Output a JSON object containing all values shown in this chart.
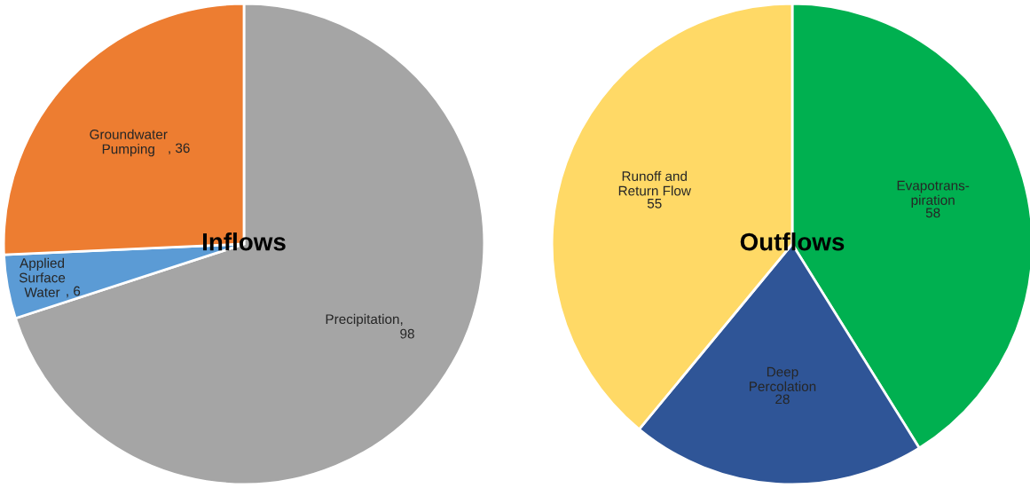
{
  "chart_data": [
    {
      "type": "pie",
      "title": "Inflows",
      "categories": [
        "Precipitation",
        "Applied\nSurface\nWater",
        "Groundwater\nPumping"
      ],
      "values": [
        98,
        6,
        36
      ],
      "value_labels": [
        ",\n98",
        ", 6",
        ", 36"
      ],
      "colors": [
        "#a5a5a5",
        "#5b9bd5",
        "#ed7d31"
      ],
      "data_labels": true
    },
    {
      "type": "pie",
      "title": "Outflows",
      "categories": [
        "Evapotrans-\npiration",
        "Deep\nPercolation",
        "Runoff and\nReturn Flow"
      ],
      "values": [
        58,
        28,
        55
      ],
      "colors": [
        "#00b050",
        "#2f5597",
        "#ffd966"
      ],
      "data_labels": true
    }
  ]
}
